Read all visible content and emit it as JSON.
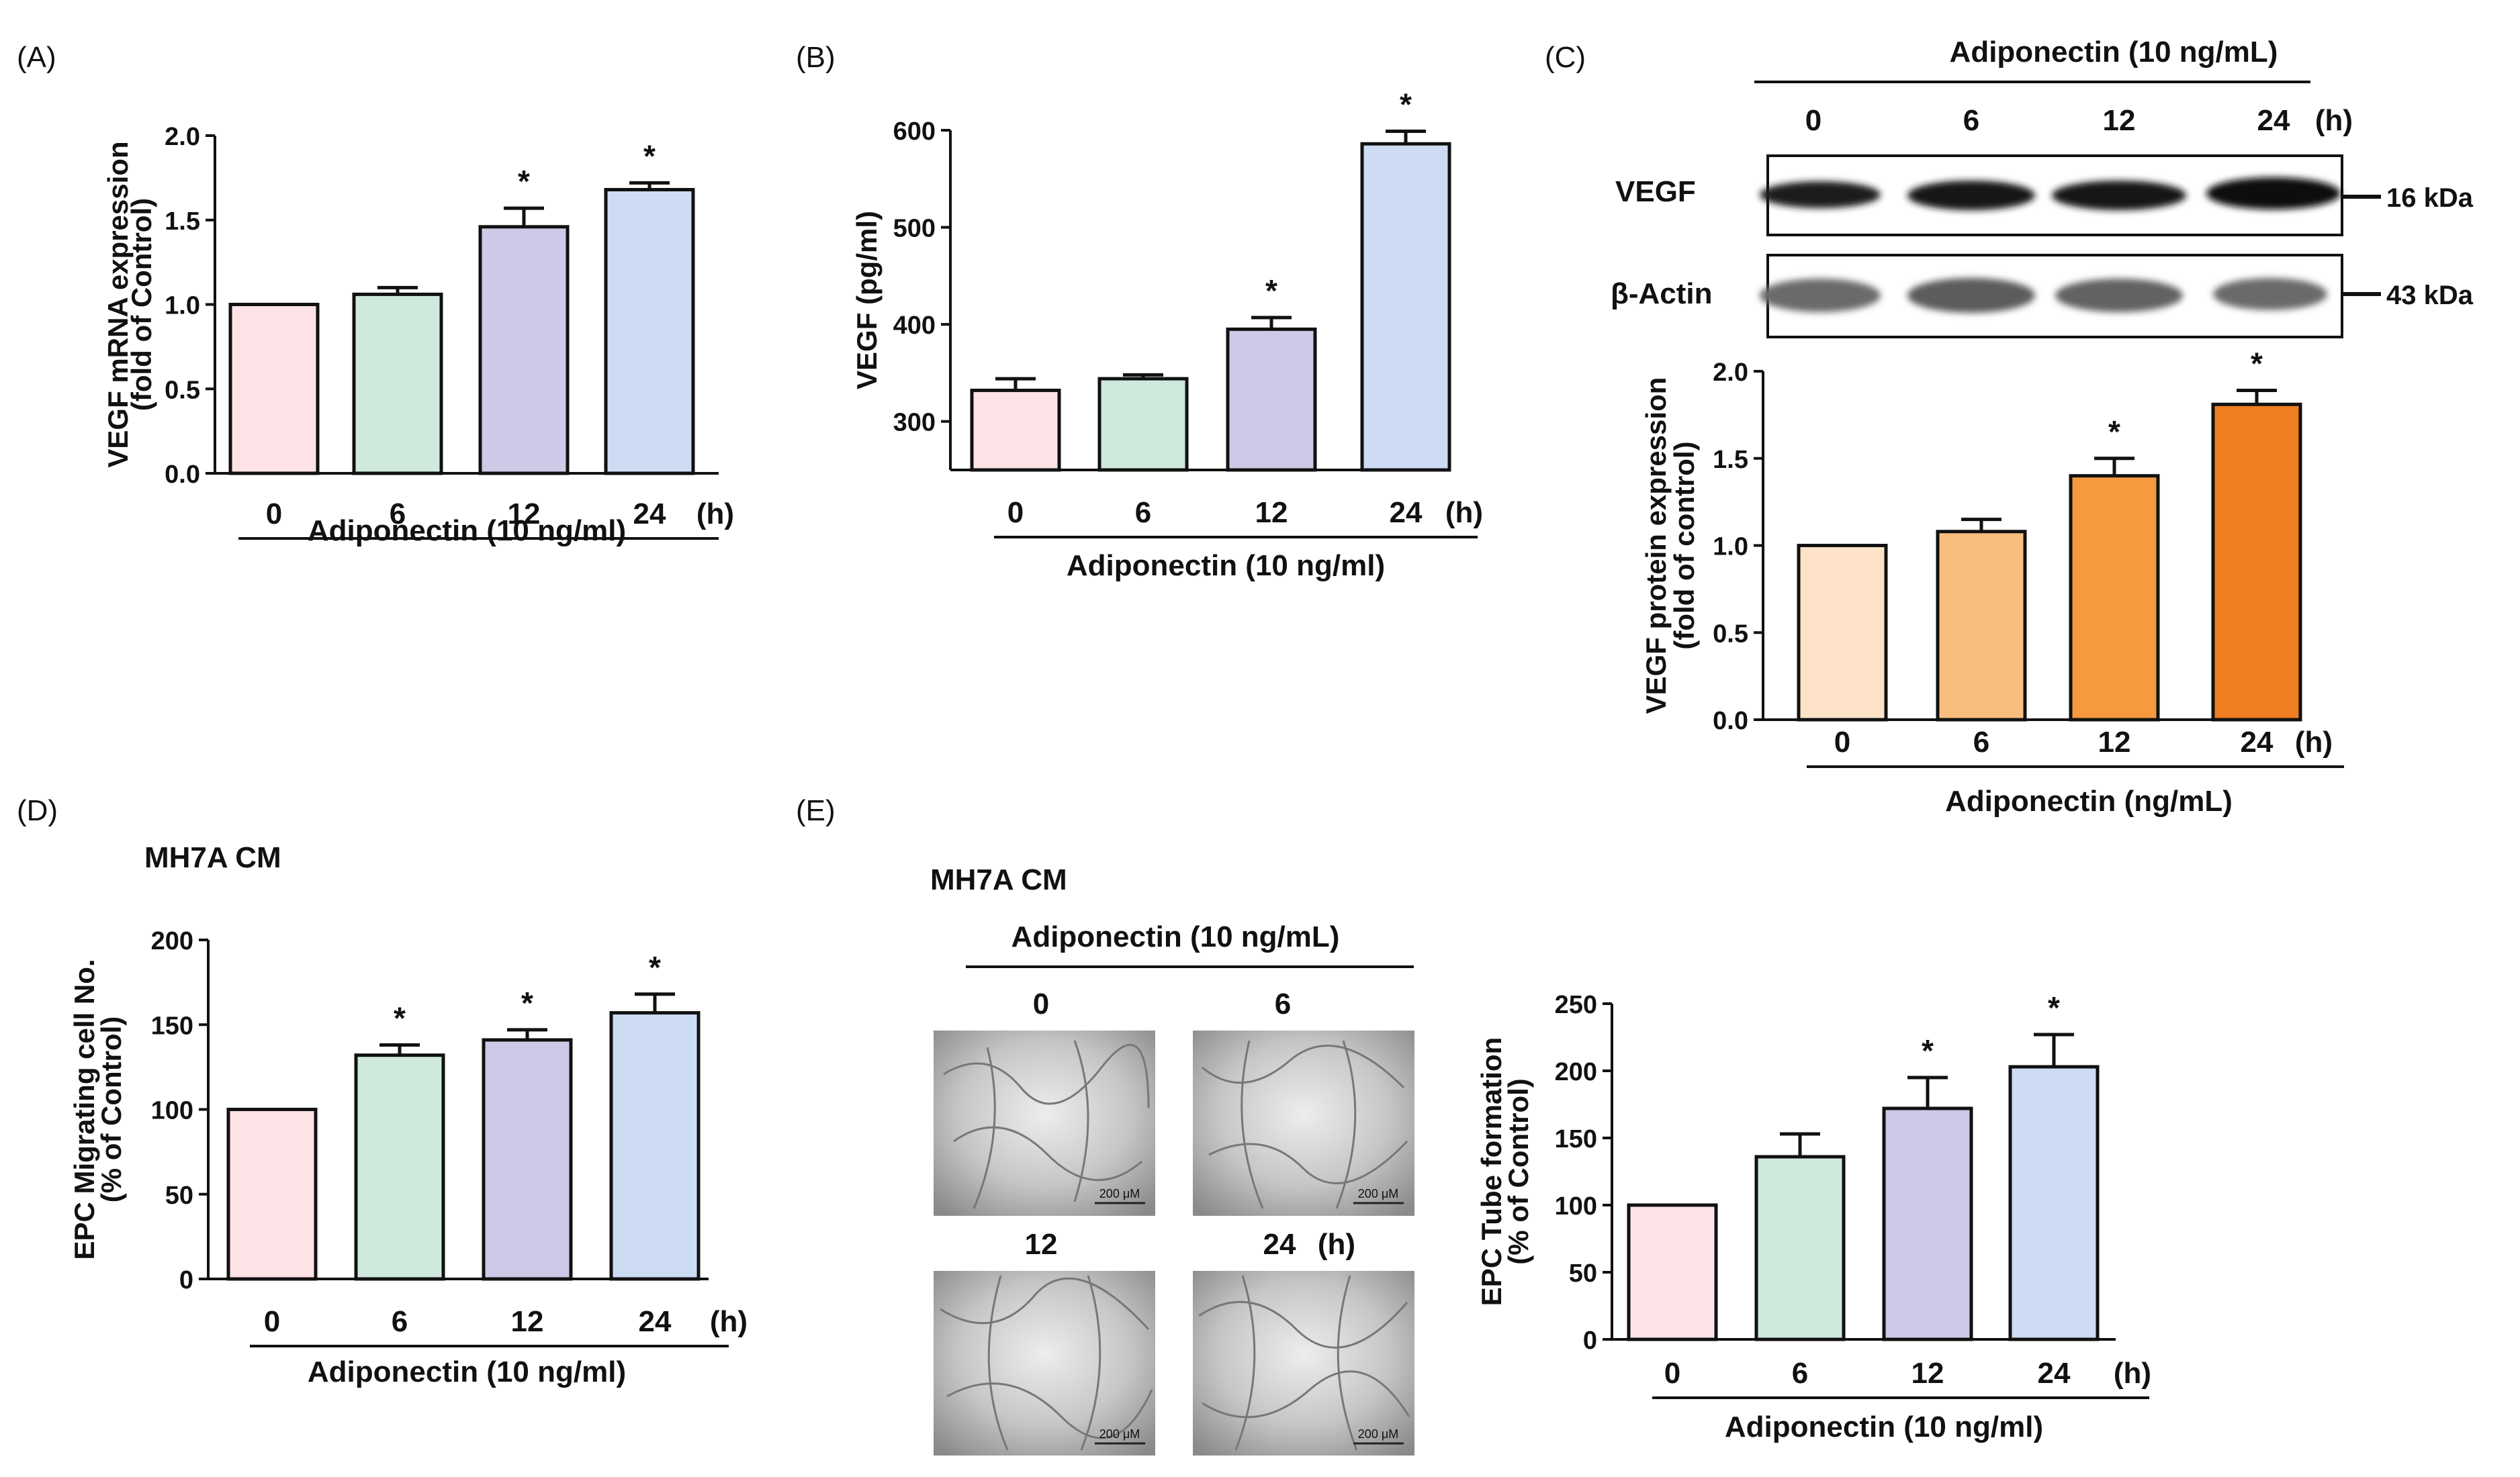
{
  "figure": {
    "unit_hours": "(h)",
    "star": "*"
  },
  "colors": {
    "pink": "#fde2e6",
    "green": "#cfeadc",
    "purple": "#cec9e6",
    "blue": "#cddcf3",
    "orange": [
      "#fde2c8",
      "#f9bd7d",
      "#f6993f",
      "#ef7d21"
    ]
  },
  "chart_data": [
    {
      "panel": "(A)",
      "type": "bar",
      "categories": [
        "0",
        "6",
        "12",
        "24"
      ],
      "values": [
        1.0,
        1.06,
        1.46,
        1.68
      ],
      "errors": [
        0,
        0.04,
        0.11,
        0.04
      ],
      "significant": [
        false,
        false,
        true,
        true
      ],
      "ylabel": [
        "VEGF mRNA expression",
        "(fold of Control)"
      ],
      "yticks": [
        "0.0",
        "0.5",
        "1.0",
        "1.5",
        "2.0"
      ],
      "ylim": [
        0,
        2.0
      ],
      "xlabel": "Adiponectin (10 ng/ml)"
    },
    {
      "panel": "(B)",
      "type": "bar",
      "categories": [
        "0",
        "6",
        "12",
        "24"
      ],
      "values": [
        332,
        344,
        395,
        586
      ],
      "errors": [
        12,
        4,
        12,
        13
      ],
      "significant": [
        false,
        false,
        true,
        true
      ],
      "ylabel": [
        "VEGF (pg/ml)"
      ],
      "yticks": [
        "300",
        "400",
        "500",
        "600"
      ],
      "ylim": [
        250,
        600
      ],
      "xlabel": "Adiponectin (10 ng/ml)"
    },
    {
      "panel": "(C)",
      "type": "bar",
      "categories": [
        "0",
        "6",
        "12",
        "24"
      ],
      "values": [
        1.0,
        1.08,
        1.4,
        1.81
      ],
      "errors": [
        0,
        0.07,
        0.1,
        0.08
      ],
      "significant": [
        false,
        false,
        true,
        true
      ],
      "ylabel": [
        "VEGF protein expression",
        "(fold of control)"
      ],
      "yticks": [
        "0.0",
        "0.5",
        "1.0",
        "1.5",
        "2.0"
      ],
      "ylim": [
        0,
        2.0
      ],
      "xlabel": "Adiponectin (ng/mL)"
    },
    {
      "panel": "(D)",
      "type": "bar",
      "categories": [
        "0",
        "6",
        "12",
        "24"
      ],
      "values": [
        100,
        132,
        141,
        157
      ],
      "errors": [
        0,
        6,
        6,
        11
      ],
      "significant": [
        false,
        true,
        true,
        true
      ],
      "ylabel": [
        "EPC Migrating cell No.",
        "(% of Control)"
      ],
      "yticks": [
        "0",
        "50",
        "100",
        "150",
        "200"
      ],
      "ylim": [
        0,
        200
      ],
      "xlabel": "Adiponectin (10 ng/ml)"
    },
    {
      "panel": "(E)",
      "type": "bar",
      "categories": [
        "0",
        "6",
        "12",
        "24"
      ],
      "values": [
        100,
        136,
        172,
        203
      ],
      "errors": [
        0,
        17,
        23,
        24
      ],
      "significant": [
        false,
        false,
        true,
        true
      ],
      "ylabel": [
        "EPC Tube formation",
        "(% of Control)"
      ],
      "yticks": [
        "0",
        "50",
        "100",
        "150",
        "200",
        "250"
      ],
      "ylim": [
        0,
        250
      ],
      "xlabel": "Adiponectin (10 ng/ml)"
    }
  ],
  "western": {
    "header": "Adiponectin (10 ng/mL)",
    "lanes": [
      "0",
      "6",
      "12",
      "24"
    ],
    "unit": "(h)",
    "rows": [
      {
        "label": "VEGF",
        "marker": "16 kDa"
      },
      {
        "label": "β-Actin",
        "marker": "43 kDa"
      }
    ]
  },
  "panel_d": {
    "subtitle": "MH7A CM"
  },
  "panel_e": {
    "subtitle": "MH7A CM",
    "header": "Adiponectin (10 ng/mL)",
    "image_labels": [
      "0",
      "6",
      "12",
      "24"
    ],
    "unit": "(h)",
    "scalebar": "200 μM"
  }
}
